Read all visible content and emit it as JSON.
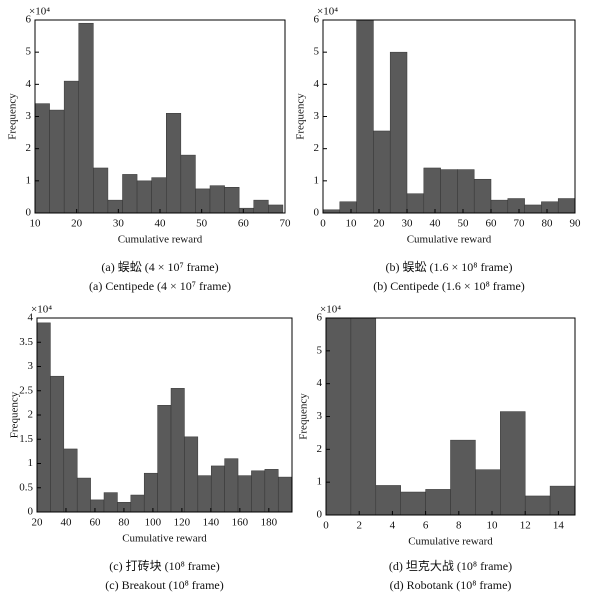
{
  "chart_data": [
    {
      "type": "histogram",
      "ylabel": "Frequency",
      "xlabel": "Cumulative reward",
      "y_multiplier": "×10⁴",
      "caption": [
        "(a) 蜈蚣  (4 × 10⁷ frame)",
        "(a) Centipede (4 × 10⁷ frame)"
      ],
      "color": "#5a5a5a",
      "bins": [
        10,
        13.5,
        17,
        20.5,
        24,
        27.5,
        31,
        34.5,
        38,
        41.5,
        45,
        48.5,
        52,
        55.5,
        59,
        62.5,
        66,
        69.5
      ],
      "values": [
        3.4,
        3.2,
        4.1,
        5.9,
        1.4,
        0.4,
        1.2,
        1.0,
        1.1,
        3.1,
        1.8,
        0.75,
        0.85,
        0.8,
        0.15,
        0.4,
        0.25
      ],
      "xlim": [
        10,
        70
      ],
      "ylim": [
        0,
        6
      ],
      "xticks": [
        10,
        20,
        30,
        40,
        50,
        60,
        70
      ],
      "yticks": [
        0,
        1,
        2,
        3,
        4,
        5,
        6
      ]
    },
    {
      "type": "histogram",
      "ylabel": "Frequency",
      "xlabel": "Cumulative reward",
      "y_multiplier": "×10⁴",
      "caption": [
        "(b) 蜈蚣  (1.6 × 10⁸ frame)",
        "(b) Centipede (1.6 × 10⁸ frame)"
      ],
      "color": "#5a5a5a",
      "bins": [
        0,
        6,
        12,
        18,
        24,
        30,
        36,
        42,
        48,
        54,
        60,
        66,
        72,
        78,
        84,
        90
      ],
      "values": [
        0.1,
        0.35,
        6.1,
        2.55,
        5.0,
        0.6,
        1.4,
        1.35,
        1.35,
        1.05,
        0.4,
        0.45,
        0.25,
        0.35,
        0.45
      ],
      "xlim": [
        0,
        90
      ],
      "ylim": [
        0,
        6
      ],
      "xticks": [
        0,
        10,
        20,
        30,
        40,
        50,
        60,
        70,
        80,
        90
      ],
      "yticks": [
        0,
        1,
        2,
        3,
        4,
        5,
        6
      ]
    },
    {
      "type": "histogram",
      "ylabel": "Frequency",
      "xlabel": "Cumulative reward",
      "y_multiplier": "×10⁴",
      "caption": [
        "(c) 打砖块  (10⁸ frame)",
        "(c) Breakout (10⁸ frame)"
      ],
      "color": "#5a5a5a",
      "bins": [
        20,
        29.25,
        38.5,
        47.75,
        57,
        66.25,
        75.5,
        84.75,
        94,
        103.25,
        112.5,
        121.75,
        131,
        140.25,
        149.5,
        158.75,
        168,
        177.25,
        186.5,
        195.75
      ],
      "values": [
        3.9,
        2.8,
        1.3,
        0.7,
        0.25,
        0.4,
        0.2,
        0.35,
        0.8,
        2.2,
        2.55,
        1.55,
        0.75,
        0.95,
        1.1,
        0.75,
        0.85,
        0.88,
        0.72
      ],
      "xlim": [
        20,
        196
      ],
      "ylim": [
        0,
        4
      ],
      "xticks": [
        20,
        40,
        60,
        80,
        100,
        120,
        140,
        160,
        180
      ],
      "yticks": [
        0,
        0.5,
        1,
        1.5,
        2,
        2.5,
        3,
        3.5,
        4
      ]
    },
    {
      "type": "histogram",
      "ylabel": "Frequency",
      "xlabel": "Cumulative reward",
      "y_multiplier": "×10⁴",
      "caption": [
        "(d) 坦克大战  (10⁸ frame)",
        "(d) Robotank (10⁸ frame)"
      ],
      "color": "#5a5a5a",
      "bins": [
        0,
        1.5,
        3,
        4.5,
        6,
        7.5,
        9,
        10.5,
        12,
        13.5,
        15
      ],
      "values": [
        6.1,
        6.1,
        0.9,
        0.7,
        0.78,
        2.28,
        1.38,
        3.15,
        0.58,
        0.88
      ],
      "xlim": [
        0,
        15
      ],
      "ylim": [
        0,
        6
      ],
      "xticks": [
        0,
        2,
        4,
        6,
        8,
        10,
        12,
        14
      ],
      "yticks": [
        0,
        1,
        2,
        3,
        4,
        5,
        6
      ]
    }
  ]
}
